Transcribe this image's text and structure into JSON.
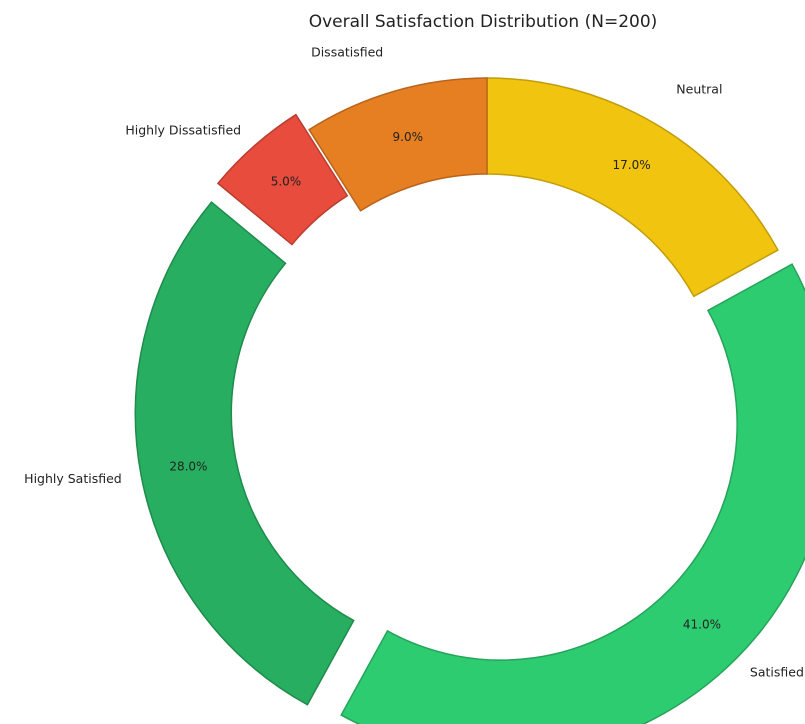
{
  "chart_data": {
    "type": "donut",
    "title": "Overall Satisfaction Distribution (N=200)",
    "categories": [
      "Neutral",
      "Satisfied",
      "Highly Satisfied",
      "Highly Dissatisfied",
      "Dissatisfied"
    ],
    "values": [
      17,
      41,
      28,
      5,
      9
    ],
    "value_labels": [
      "17.0%",
      "41.0%",
      "28.0%",
      "5.0%",
      "9.0%"
    ],
    "colors": [
      "#f1c40f",
      "#2ecc71",
      "#27ae60",
      "#e74c3c",
      "#e67e22"
    ],
    "explode": [
      false,
      true,
      true,
      true,
      false
    ]
  }
}
